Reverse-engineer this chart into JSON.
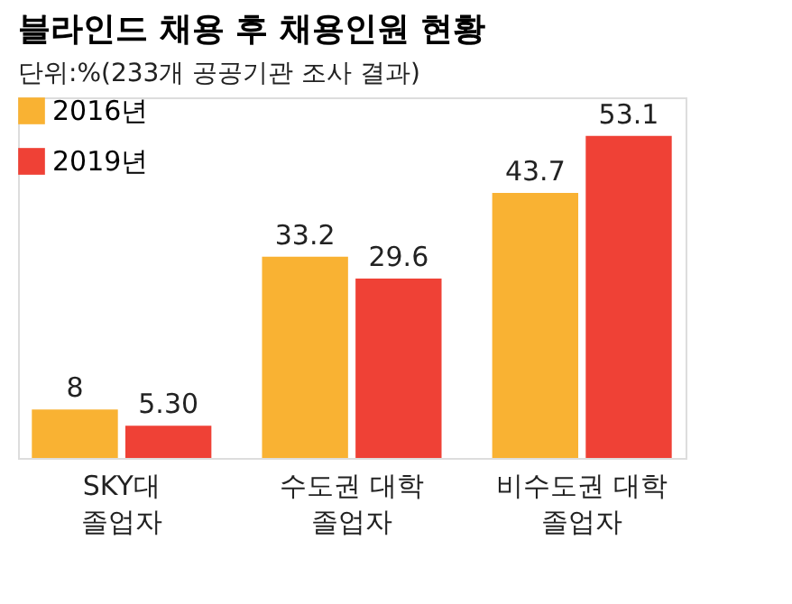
{
  "chart_data": {
    "type": "bar",
    "title": "블라인드 채용 후 채용인원 현황",
    "subtitle": "단위:%(233개 공공기관 조사 결과)",
    "categories": [
      "SKY대\n졸업자",
      "수도권 대학\n졸업자",
      "비수도권 대학\n졸업자"
    ],
    "series": [
      {
        "name": "2016년",
        "color": "#f9b233",
        "values": [
          8,
          33.2,
          43.7
        ],
        "value_labels": [
          "8",
          "33.2",
          "43.7"
        ]
      },
      {
        "name": "2019년",
        "color": "#ef4136",
        "values": [
          5.3,
          29.6,
          53.1
        ],
        "value_labels": [
          "5.30",
          "29.6",
          "53.1"
        ]
      }
    ],
    "legend": "top left",
    "grid": false
  }
}
